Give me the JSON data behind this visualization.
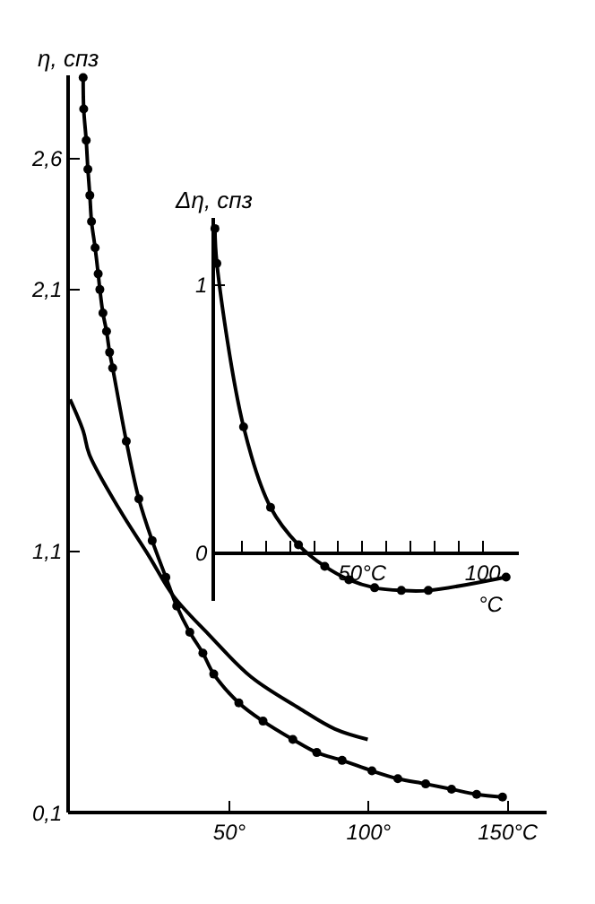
{
  "chart_data": [
    {
      "type": "line",
      "ylabel": "η, спз",
      "xlim": [
        -8,
        164
      ],
      "ylim": [
        0.1,
        2.92
      ],
      "xticks": [
        {
          "value": 50,
          "label": "50°"
        },
        {
          "value": 100,
          "label": "100°"
        },
        {
          "value": 150,
          "label": "150°C"
        }
      ],
      "yticks": [
        {
          "value": 0.1,
          "label": "0,1"
        },
        {
          "value": 1.1,
          "label": "1,1"
        },
        {
          "value": 2.1,
          "label": "2,1"
        },
        {
          "value": 2.6,
          "label": "2,6"
        }
      ],
      "grid": false,
      "legend": false,
      "series": [
        {
          "color": "#000000",
          "marker": "circle",
          "x": [
            -2.5,
            -2.3,
            -1.4,
            -0.8,
            -0.1,
            0.5,
            1.8,
            2.9,
            3.5,
            4.6,
            5.9,
            7.0,
            8.1,
            13.0,
            17.5,
            22.3,
            27.2,
            31.1,
            35.8,
            40.5,
            44.4,
            53.4,
            62.1,
            72.8,
            81.4,
            90.5,
            101.2,
            110.5,
            120.5,
            129.8,
            138.8,
            148.1
          ],
          "values": [
            2.91,
            2.79,
            2.67,
            2.56,
            2.46,
            2.36,
            2.26,
            2.16,
            2.1,
            2.01,
            1.94,
            1.86,
            1.8,
            1.52,
            1.3,
            1.14,
            1.0,
            0.89,
            0.79,
            0.71,
            0.63,
            0.52,
            0.45,
            0.38,
            0.33,
            0.3,
            0.26,
            0.23,
            0.21,
            0.19,
            0.17,
            0.16
          ]
        },
        {
          "color": "#000000",
          "marker": "none",
          "x": [
            -7.2,
            -2.5,
            -0.3,
            10.5,
            21.2,
            29.8,
            42.7,
            57.7,
            75,
            87.9,
            99.7
          ],
          "values": [
            1.68,
            1.56,
            1.47,
            1.26,
            1.08,
            0.93,
            0.78,
            0.62,
            0.5,
            0.42,
            0.38
          ]
        }
      ]
    },
    {
      "type": "line",
      "ylabel": "Δη, спз",
      "xlabel": "°C",
      "xlim": [
        -12,
        115
      ],
      "ylim": [
        -0.18,
        1.25
      ],
      "xticks": [
        {
          "value": 0,
          "label": null
        },
        {
          "value": 10,
          "label": null
        },
        {
          "value": 20,
          "label": null
        },
        {
          "value": 30,
          "label": null
        },
        {
          "value": 40,
          "label": null
        },
        {
          "value": 50,
          "label": "50°C"
        },
        {
          "value": 60,
          "label": null
        },
        {
          "value": 70,
          "label": null
        },
        {
          "value": 80,
          "label": null
        },
        {
          "value": 90,
          "label": null
        },
        {
          "value": 100,
          "label": "100"
        }
      ],
      "yticks": [
        {
          "value": 0,
          "label": "0"
        },
        {
          "value": 1,
          "label": "1"
        }
      ],
      "grid": false,
      "legend": false,
      "series": [
        {
          "color": "#000000",
          "marker": "circle",
          "x": [
            -11.2,
            -10.4,
            0.7,
            11.9,
            23.5,
            34.4,
            44.4,
            55.1,
            66.2,
            77.4,
            109.7
          ],
          "values": [
            1.21,
            1.08,
            0.47,
            0.17,
            0.03,
            -0.05,
            -0.1,
            -0.13,
            -0.14,
            -0.14,
            -0.09
          ]
        }
      ]
    }
  ]
}
